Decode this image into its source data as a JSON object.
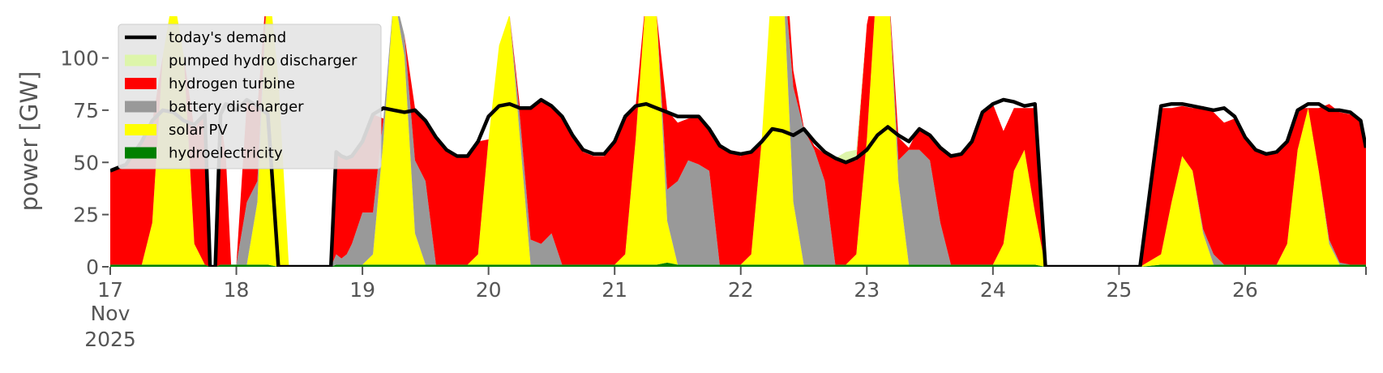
{
  "chart_data": {
    "type": "area",
    "title": "",
    "xlabel": "",
    "ylabel": "power [GW]",
    "ylim": [
      0,
      120
    ],
    "y_ticks": [
      0,
      25,
      50,
      75,
      100
    ],
    "y_tick_labels": [
      "0",
      "25",
      "50",
      "75",
      "100"
    ],
    "xlim": [
      0,
      239
    ],
    "x_unit": "hours since 17 Nov 2025 00:00",
    "x_ticks": [
      0,
      24,
      48,
      72,
      96,
      120,
      144,
      168,
      192,
      216
    ],
    "x_tick_labels": [
      "17",
      "18",
      "19",
      "20",
      "21",
      "22",
      "23",
      "24",
      "25",
      "26"
    ],
    "x_tick_sublabels": [
      "Nov",
      "2025"
    ],
    "grid": false,
    "legend_position": "top-left",
    "colors": {
      "demand": "#000000",
      "pumped_hydro": "#ddf5aa",
      "hydrogen": "#ff0000",
      "battery": "#999999",
      "solar": "#ffff00",
      "hydro": "#008000",
      "background": "#ffffff",
      "legend_background": "#e5e5e5"
    },
    "legend": [
      {
        "label": "today's demand",
        "kind": "line",
        "color": "#000000"
      },
      {
        "label": "pumped hydro discharger",
        "kind": "patch",
        "color": "#ddf5aa"
      },
      {
        "label": "hydrogen turbine",
        "kind": "patch",
        "color": "#ff0000"
      },
      {
        "label": "battery discharger",
        "kind": "patch",
        "color": "#999999"
      },
      {
        "label": "solar PV",
        "kind": "patch",
        "color": "#ffff00"
      },
      {
        "label": "hydroelectricity",
        "kind": "patch",
        "color": "#008000"
      }
    ],
    "series_order_bottom_to_top": [
      "hydro",
      "solar",
      "battery",
      "hydrogen",
      "pumped_hydro"
    ],
    "demand_series": "demand",
    "x": [
      0,
      3,
      6,
      8,
      10,
      12,
      14,
      16,
      18,
      19,
      20,
      21,
      22,
      23,
      24,
      26,
      28,
      30,
      32,
      34,
      36,
      38,
      40,
      41,
      42,
      43,
      44,
      45,
      46,
      48,
      50,
      52,
      54,
      56,
      58,
      60,
      62,
      64,
      66,
      68,
      70,
      72,
      74,
      76,
      78,
      80,
      82,
      84,
      86,
      88,
      90,
      92,
      94,
      96,
      98,
      100,
      102,
      104,
      106,
      108,
      110,
      112,
      114,
      116,
      118,
      120,
      122,
      124,
      126,
      128,
      130,
      132,
      134,
      136,
      138,
      140,
      142,
      144,
      146,
      148,
      150,
      152,
      154,
      156,
      158,
      160,
      162,
      164,
      166,
      168,
      170,
      172,
      174,
      176,
      178,
      180,
      182,
      183,
      184,
      188,
      192,
      196,
      200,
      202,
      204,
      206,
      208,
      210,
      212,
      214,
      216,
      218,
      220,
      222,
      224,
      226,
      228,
      230,
      232,
      234,
      236,
      238,
      239
    ],
    "series": {
      "demand": [
        46,
        49,
        60,
        70,
        75,
        74,
        70,
        68,
        73,
        0,
        0,
        73,
        78,
        77,
        75,
        80,
        77,
        73,
        0,
        0,
        0,
        0,
        0,
        0,
        0,
        55,
        53,
        52,
        53,
        60,
        73,
        76,
        75,
        74,
        75,
        70,
        62,
        56,
        53,
        53,
        60,
        72,
        77,
        78,
        76,
        76,
        80,
        77,
        72,
        63,
        56,
        54,
        54,
        60,
        72,
        77,
        78,
        76,
        74,
        72,
        72,
        72,
        66,
        58,
        55,
        54,
        55,
        60,
        66,
        65,
        63,
        66,
        60,
        55,
        52,
        50,
        52,
        56,
        63,
        67,
        63,
        60,
        66,
        63,
        57,
        53,
        54,
        60,
        74,
        78,
        80,
        79,
        77,
        78,
        0,
        0,
        0,
        0,
        0,
        0,
        0,
        0,
        77,
        78,
        78,
        77,
        76,
        75,
        76,
        72,
        62,
        56,
        54,
        55,
        60,
        75,
        78,
        78,
        75,
        75,
        74,
        70,
        57
      ],
      "hydro": [
        1,
        1,
        1,
        1,
        1,
        1,
        1,
        1,
        1,
        0,
        0,
        1,
        1,
        1,
        1,
        1,
        1,
        1,
        0,
        0,
        0,
        0,
        0,
        0,
        0,
        1,
        1,
        1,
        1,
        1,
        1,
        1,
        1,
        1,
        1,
        1,
        1,
        1,
        1,
        1,
        1,
        1,
        1,
        1,
        1,
        1,
        1,
        1,
        1,
        1,
        1,
        1,
        1,
        1,
        1,
        1,
        1,
        1,
        2,
        1,
        1,
        1,
        1,
        1,
        1,
        1,
        1,
        1,
        1,
        1,
        1,
        1,
        1,
        1,
        1,
        1,
        1,
        1,
        1,
        1,
        1,
        1,
        1,
        1,
        1,
        1,
        1,
        1,
        1,
        1,
        1,
        1,
        1,
        1,
        0,
        0,
        0,
        0,
        0,
        0,
        0,
        0,
        1,
        1,
        1,
        1,
        1,
        1,
        1,
        1,
        1,
        1,
        1,
        1,
        1,
        1,
        1,
        1,
        1,
        1,
        1,
        1,
        1
      ],
      "solar": [
        0,
        0,
        0,
        20,
        100,
        130,
        100,
        10,
        0,
        0,
        0,
        0,
        0,
        0,
        0,
        0,
        30,
        140,
        90,
        0,
        0,
        0,
        0,
        0,
        0,
        0,
        0,
        0,
        0,
        0,
        5,
        60,
        130,
        100,
        15,
        0,
        0,
        0,
        0,
        0,
        5,
        60,
        105,
        120,
        60,
        0,
        0,
        0,
        0,
        0,
        0,
        0,
        0,
        0,
        5,
        60,
        130,
        120,
        20,
        0,
        0,
        0,
        0,
        0,
        0,
        0,
        5,
        60,
        140,
        140,
        30,
        0,
        0,
        0,
        0,
        0,
        5,
        60,
        140,
        140,
        40,
        0,
        0,
        0,
        0,
        0,
        0,
        0,
        0,
        0,
        10,
        45,
        55,
        25,
        0,
        0,
        0,
        0,
        0,
        0,
        0,
        0,
        5,
        30,
        52,
        45,
        15,
        0,
        0,
        0,
        0,
        0,
        0,
        0,
        10,
        55,
        75,
        45,
        10,
        0,
        0,
        0,
        0
      ],
      "battery": [
        0,
        0,
        0,
        0,
        0,
        0,
        0,
        0,
        0,
        0,
        0,
        0,
        0,
        0,
        0,
        30,
        10,
        0,
        0,
        0,
        0,
        0,
        0,
        0,
        0,
        5,
        3,
        5,
        10,
        25,
        20,
        10,
        0,
        10,
        35,
        40,
        0,
        0,
        0,
        0,
        0,
        0,
        0,
        0,
        10,
        12,
        10,
        15,
        0,
        0,
        0,
        0,
        0,
        0,
        0,
        0,
        0,
        0,
        15,
        40,
        50,
        48,
        45,
        0,
        0,
        0,
        0,
        0,
        0,
        5,
        55,
        65,
        55,
        40,
        0,
        0,
        0,
        0,
        0,
        0,
        10,
        55,
        55,
        50,
        20,
        0,
        0,
        0,
        0,
        0,
        0,
        0,
        0,
        0,
        0,
        0,
        0,
        0,
        0,
        0,
        0,
        0,
        0,
        0,
        0,
        0,
        2,
        5,
        0,
        0,
        0,
        0,
        0,
        0,
        0,
        0,
        0,
        0,
        2,
        1,
        0,
        0,
        0
      ],
      "hydrogen": [
        45,
        48,
        58,
        48,
        0,
        0,
        0,
        55,
        72,
        0,
        0,
        70,
        52,
        0,
        0,
        48,
        35,
        0,
        0,
        0,
        0,
        0,
        0,
        0,
        0,
        49,
        49,
        46,
        42,
        34,
        47,
        0,
        0,
        0,
        25,
        30,
        61,
        55,
        52,
        52,
        54,
        0,
        0,
        0,
        5,
        63,
        68,
        61,
        71,
        61,
        54,
        52,
        52,
        59,
        66,
        16,
        0,
        0,
        38,
        28,
        20,
        23,
        20,
        57,
        54,
        52,
        50,
        0,
        0,
        21,
        8,
        1,
        2,
        13,
        51,
        49,
        45,
        55,
        0,
        0,
        11,
        1,
        11,
        12,
        36,
        53,
        53,
        59,
        73,
        77,
        54,
        30,
        20,
        50,
        0,
        0,
        0,
        0,
        0,
        0,
        0,
        0,
        70,
        45,
        24,
        30,
        59,
        68,
        68,
        70,
        61,
        55,
        53,
        53,
        48,
        20,
        0,
        30,
        65,
        72,
        72,
        69,
        56
      ],
      "pumped_hydro": [
        0,
        0,
        0,
        0,
        0,
        0,
        0,
        0,
        0,
        0,
        0,
        0,
        0,
        0,
        0,
        0,
        0,
        0,
        0,
        0,
        0,
        0,
        0,
        0,
        0,
        0,
        0,
        0,
        0,
        0,
        0,
        0,
        0,
        0,
        0,
        0,
        0,
        0,
        0,
        0,
        0,
        0,
        0,
        0,
        0,
        0,
        0,
        0,
        0,
        0,
        0,
        0,
        0,
        0,
        0,
        0,
        0,
        0,
        0,
        0,
        0,
        0,
        0,
        0,
        0,
        0,
        0,
        0,
        0,
        0,
        0,
        0,
        0,
        0,
        0,
        5,
        5,
        0,
        0,
        0,
        0,
        0,
        0,
        0,
        0,
        0,
        0,
        0,
        0,
        0,
        0,
        0,
        0,
        0,
        0,
        0,
        0,
        0,
        0,
        0,
        0,
        0,
        0,
        0,
        0,
        0,
        0,
        0,
        0,
        0,
        0,
        0,
        0,
        0,
        0,
        0,
        0,
        0,
        0,
        0,
        0,
        0,
        0
      ]
    }
  }
}
